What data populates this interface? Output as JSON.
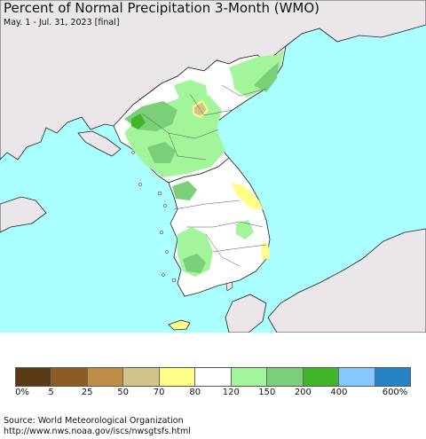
{
  "title": "Percent of Normal Precipitation 3-Month (WMO)",
  "subtitle": "May. 1 - Jul. 31, 2023 [final]",
  "colors": {
    "ocean": "#aaffff",
    "land_outside": "#ebe6ea",
    "land_normal": "#ffffff",
    "light_green": "#a3f59c",
    "mid_green": "#7ccf79",
    "dark_green": "#41b52a",
    "yellow": "#ffff87",
    "tan": "#d3c48b",
    "border": "#222222"
  },
  "legend": {
    "colors": [
      "#5a3b16",
      "#8b5c22",
      "#c08d46",
      "#d3c48b",
      "#ffff87",
      "#ffffff",
      "#a3f59c",
      "#7ccf79",
      "#41b52a",
      "#82c8ff",
      "#2683c6"
    ],
    "labels": [
      "0%",
      "5",
      "25",
      "50",
      "70",
      "80",
      "120",
      "150",
      "200",
      "400",
      "600%"
    ]
  },
  "source": "Source: World Meteorological Organization",
  "url": "http://www.nws.noaa.gov/iscs/nwsgtsfs.html"
}
